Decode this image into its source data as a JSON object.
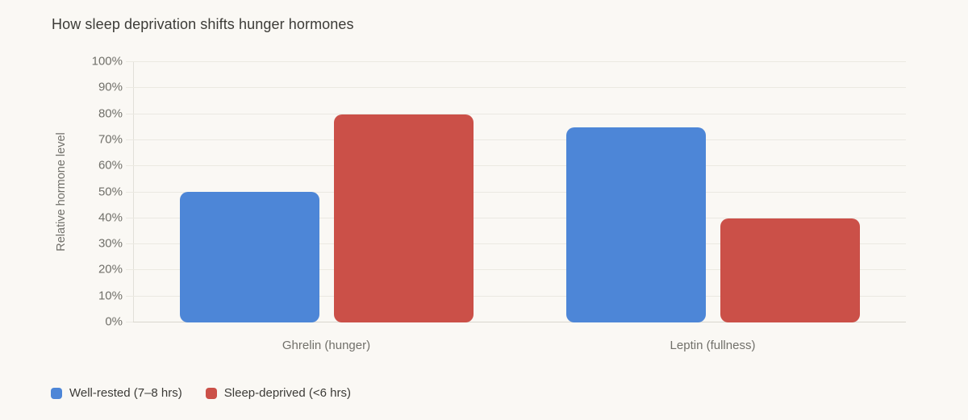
{
  "chart_data": {
    "type": "bar",
    "title": "How sleep deprivation shifts hunger hormones",
    "xlabel": "",
    "ylabel": "Relative hormone level",
    "ylim": [
      0,
      100
    ],
    "ytick_step": 10,
    "yticks": [
      "0%",
      "10%",
      "20%",
      "30%",
      "40%",
      "50%",
      "60%",
      "70%",
      "80%",
      "90%",
      "100%"
    ],
    "grid": true,
    "legend_position": "bottom-left",
    "categories": [
      "Ghrelin (hunger)",
      "Leptin (fullness)"
    ],
    "series": [
      {
        "name": "Well-rested (7–8 hrs)",
        "color": "#4d86d7",
        "values": [
          50,
          75
        ]
      },
      {
        "name": "Sleep-deprived (<6 hrs)",
        "color": "#cb5048",
        "values": [
          80,
          40
        ]
      }
    ]
  },
  "colors": {
    "background": "#faf8f4",
    "gridline": "#ebe9e2",
    "baseline": "#d9d6ce",
    "axis_line": "#e2e0d9",
    "tick_text": "#71706a",
    "title_text": "#3c3b37",
    "legend_text": "#3c3b37"
  }
}
